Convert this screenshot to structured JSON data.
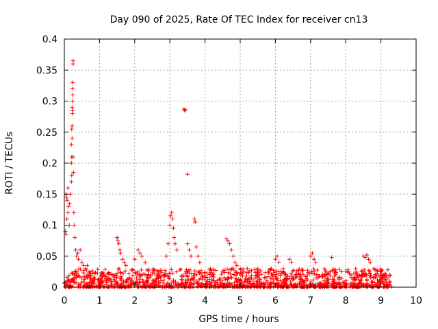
{
  "chart_data": {
    "type": "scatter",
    "title": "Day 090 of 2025, Rate Of TEC Index for receiver cn13",
    "xlabel": "GPS time / hours",
    "ylabel": "ROTI / TECUs",
    "xlim": [
      0,
      10
    ],
    "ylim": [
      0,
      0.4
    ],
    "grid": true,
    "marker": "+",
    "x_ticks": [
      0,
      1,
      2,
      3,
      4,
      5,
      6,
      7,
      8,
      9,
      10
    ],
    "x_tick_labels": [
      "0",
      "1",
      "2",
      "3",
      "4",
      "5",
      "6",
      "7",
      "8",
      "9",
      "10"
    ],
    "y_ticks": [
      0,
      0.05,
      0.1,
      0.15,
      0.2,
      0.25,
      0.3,
      0.35,
      0.4
    ],
    "y_tick_labels": [
      "0",
      "0.05",
      "0.1",
      "0.15",
      "0.2",
      "0.25",
      "0.3",
      "0.35",
      "0.4"
    ],
    "series": [
      {
        "name": "ROTI",
        "color": "#ff0000",
        "x_range": [
          0,
          9.3
        ],
        "points": [
          [
            0.05,
            0.15
          ],
          [
            0.06,
            0.145
          ],
          [
            0.08,
            0.14
          ],
          [
            0.1,
            0.16
          ],
          [
            0.12,
            0.13
          ],
          [
            0.14,
            0.1
          ],
          [
            0.03,
            0.09
          ],
          [
            0.05,
            0.085
          ],
          [
            0.07,
            0.11
          ],
          [
            0.1,
            0.12
          ],
          [
            0.15,
            0.135
          ],
          [
            0.18,
            0.15
          ],
          [
            0.2,
            0.17
          ],
          [
            0.21,
            0.18
          ],
          [
            0.2,
            0.2
          ],
          [
            0.21,
            0.21
          ],
          [
            0.2,
            0.23
          ],
          [
            0.22,
            0.24
          ],
          [
            0.21,
            0.255
          ],
          [
            0.22,
            0.26
          ],
          [
            0.23,
            0.28
          ],
          [
            0.22,
            0.29
          ],
          [
            0.23,
            0.3
          ],
          [
            0.24,
            0.31
          ],
          [
            0.23,
            0.32
          ],
          [
            0.24,
            0.33
          ],
          [
            0.25,
            0.36
          ],
          [
            0.25,
            0.365
          ],
          [
            0.24,
            0.285
          ],
          [
            0.25,
            0.21
          ],
          [
            0.26,
            0.185
          ],
          [
            0.27,
            0.12
          ],
          [
            0.28,
            0.1
          ],
          [
            0.3,
            0.08
          ],
          [
            0.32,
            0.06
          ],
          [
            0.35,
            0.05
          ],
          [
            0.38,
            0.055
          ],
          [
            0.4,
            0.045
          ],
          [
            0.45,
            0.06
          ],
          [
            0.5,
            0.04
          ],
          [
            0.55,
            0.035
          ],
          [
            0.6,
            0.03
          ],
          [
            0.65,
            0.035
          ],
          [
            1.5,
            0.08
          ],
          [
            1.52,
            0.075
          ],
          [
            1.55,
            0.07
          ],
          [
            1.58,
            0.06
          ],
          [
            1.6,
            0.055
          ],
          [
            1.65,
            0.045
          ],
          [
            1.7,
            0.04
          ],
          [
            1.75,
            0.035
          ],
          [
            2.0,
            0.045
          ],
          [
            2.1,
            0.06
          ],
          [
            2.15,
            0.055
          ],
          [
            2.2,
            0.05
          ],
          [
            2.3,
            0.04
          ],
          [
            2.9,
            0.05
          ],
          [
            2.95,
            0.07
          ],
          [
            3.0,
            0.1
          ],
          [
            3.02,
            0.115
          ],
          [
            3.05,
            0.12
          ],
          [
            3.08,
            0.11
          ],
          [
            3.1,
            0.095
          ],
          [
            3.12,
            0.08
          ],
          [
            3.15,
            0.07
          ],
          [
            3.2,
            0.06
          ],
          [
            3.4,
            0.287
          ],
          [
            3.42,
            0.285
          ],
          [
            3.45,
            0.286
          ],
          [
            3.5,
            0.182
          ],
          [
            3.5,
            0.07
          ],
          [
            3.55,
            0.06
          ],
          [
            3.6,
            0.05
          ],
          [
            3.7,
            0.11
          ],
          [
            3.72,
            0.105
          ],
          [
            3.75,
            0.065
          ],
          [
            3.8,
            0.05
          ],
          [
            3.85,
            0.04
          ],
          [
            4.6,
            0.078
          ],
          [
            4.65,
            0.075
          ],
          [
            4.7,
            0.07
          ],
          [
            4.75,
            0.06
          ],
          [
            4.8,
            0.05
          ],
          [
            4.85,
            0.04
          ],
          [
            4.9,
            0.035
          ],
          [
            5.0,
            0.03
          ],
          [
            5.2,
            0.03
          ],
          [
            5.5,
            0.03
          ],
          [
            6.0,
            0.045
          ],
          [
            6.05,
            0.05
          ],
          [
            6.1,
            0.04
          ],
          [
            6.4,
            0.045
          ],
          [
            6.45,
            0.04
          ],
          [
            7.0,
            0.05
          ],
          [
            7.05,
            0.055
          ],
          [
            7.1,
            0.045
          ],
          [
            7.15,
            0.04
          ],
          [
            7.6,
            0.048
          ],
          [
            8.5,
            0.05
          ],
          [
            8.55,
            0.048
          ],
          [
            8.6,
            0.052
          ],
          [
            8.65,
            0.045
          ],
          [
            8.7,
            0.04
          ],
          [
            8.8,
            0.03
          ],
          [
            9.0,
            0.025
          ],
          [
            9.2,
            0.015
          ]
        ],
        "baseline_band": [
          0,
          0.03
        ]
      }
    ]
  }
}
